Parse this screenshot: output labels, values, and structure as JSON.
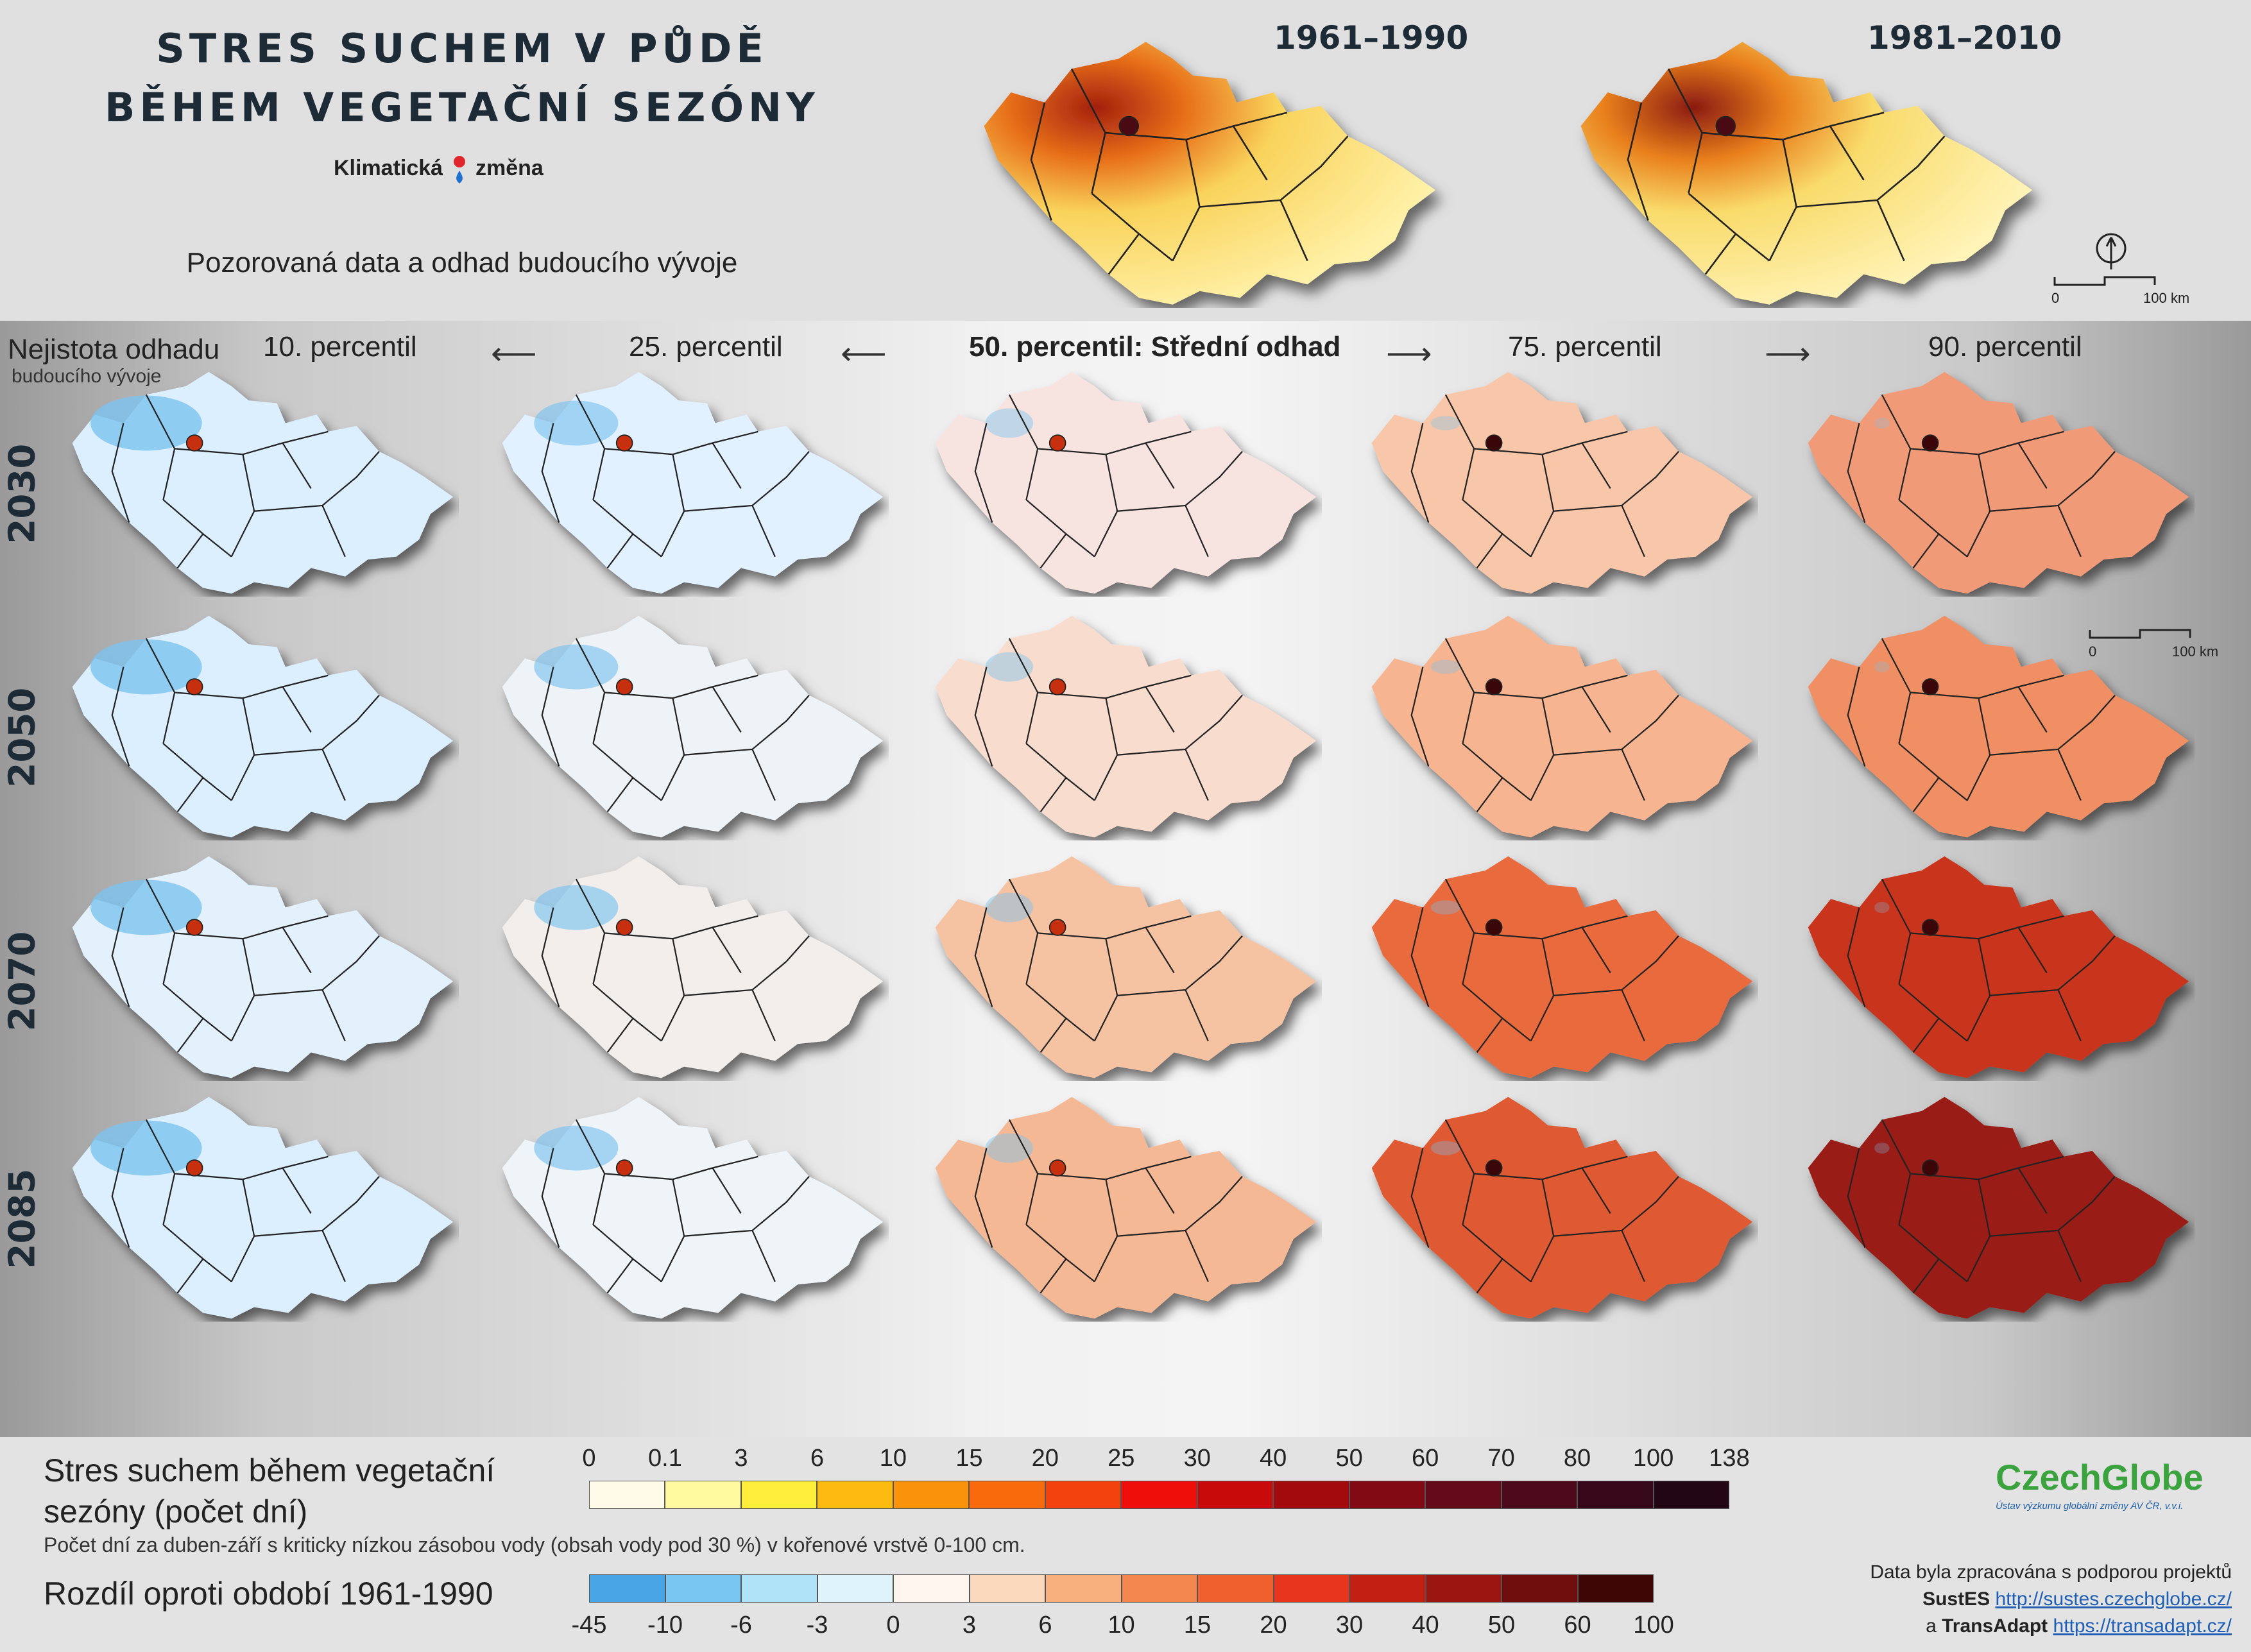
{
  "header": {
    "title_line1": "STRES SUCHEM V PŮDĚ",
    "title_line2": "BĚHEM VEGETAČNÍ SEZÓNY",
    "logo_left": "Klimatická",
    "logo_right": "změna",
    "subtitle": "Pozorovaná data a odhad budoucího vývoje",
    "periods": [
      "1961–1990",
      "1981–2010"
    ]
  },
  "scalebar": {
    "start": "0",
    "end": "100 km"
  },
  "matrix": {
    "uncertainty_label_1": "Nejistota odhadu",
    "uncertainty_label_2": "budoucího vývoje",
    "percentiles": [
      {
        "label": "10. percentil",
        "median": false
      },
      {
        "label": "25. percentil",
        "median": false
      },
      {
        "label": "50. percentil: Střední odhad",
        "median": true
      },
      {
        "label": "75. percentil",
        "median": false
      },
      {
        "label": "90. percentil",
        "median": false
      }
    ],
    "years": [
      "2030",
      "2050",
      "2070",
      "2085"
    ]
  },
  "legend": {
    "title_absolute": "Stres suchem během vegetační sezóny (počet dní)",
    "note": "Počet dní za duben-září s kriticky nízkou zásobou vody (obsah vody pod 30 %) v kořenové vrstvě 0-100 cm.",
    "title_difference": "Rozdíl oproti období 1961-1990",
    "absolute_ticks": [
      "0",
      "0.1",
      "3",
      "6",
      "10",
      "15",
      "20",
      "25",
      "30",
      "40",
      "50",
      "60",
      "70",
      "80",
      "100",
      "138"
    ],
    "absolute_colors": [
      "#fffbe8",
      "#fffaa0",
      "#ffee3a",
      "#fdbb12",
      "#fb920b",
      "#f86a0c",
      "#f2430f",
      "#ef0f0a",
      "#c90a0a",
      "#a30a0e",
      "#820a14",
      "#650a18",
      "#4c0a1a",
      "#36081a",
      "#220614"
    ],
    "difference_ticks": [
      "-45",
      "-10",
      "-6",
      "-3",
      "0",
      "3",
      "6",
      "10",
      "15",
      "20",
      "30",
      "40",
      "50",
      "60",
      "100"
    ],
    "difference_colors": [
      "#4aa5e6",
      "#78c6f1",
      "#aee2f7",
      "#dff3fb",
      "#fff6ef",
      "#fbd9bd",
      "#f9b07f",
      "#f4874f",
      "#f0602f",
      "#e8361c",
      "#c21f13",
      "#9a150f",
      "#6e0d0b",
      "#3e0605"
    ]
  },
  "branding": {
    "name": "CzechGlobe",
    "subtitle": "Ústav výzkumu globální změny AV ČR, v.v.i.",
    "credit_line": "Data byla zpracována s podporou projektů",
    "project1_name": "SustES",
    "project1_url": "http://sustes.czechglobe.cz/",
    "project2_prefix": "a",
    "project2_name": "TransAdapt",
    "project2_url": "https://transadapt.cz/"
  },
  "colors": {
    "observed_base": "#f8e58a",
    "title": "#1d2b36",
    "czechglobe_green": "#3aa33e",
    "czechglobe_blue": "#1d5ea8"
  }
}
